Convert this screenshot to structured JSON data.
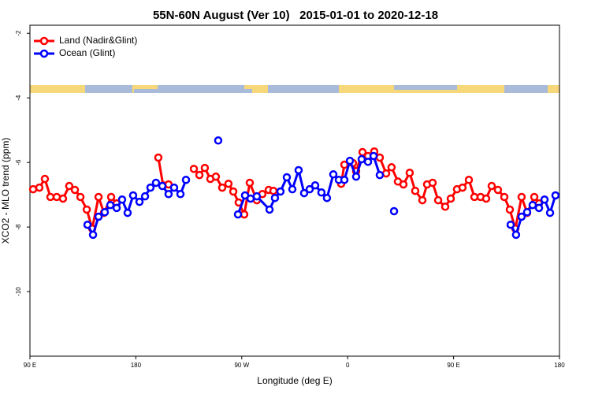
{
  "chart_data": {
    "type": "line",
    "title": "55N-60N August (Ver 10)   2015-01-01 to 2020-12-18",
    "x_label": "Longitude (deg E)",
    "y_label": "XCO2 - MLO trend (ppm)",
    "xlim": [
      90,
      540
    ],
    "ylim": [
      -12,
      -1.75
    ],
    "xticks": [
      {
        "value": 90,
        "label": "90 E"
      },
      {
        "value": 180,
        "label": "180"
      },
      {
        "value": 270,
        "label": "90 W"
      },
      {
        "value": 360,
        "label": "0"
      },
      {
        "value": 450,
        "label": "90 E"
      },
      {
        "value": 540,
        "label": "180"
      }
    ],
    "yticks": [
      -2,
      -4,
      -6,
      -8,
      -10
    ],
    "legend": "upper left",
    "series": [
      {
        "name": "Land (Nadir&Glint)",
        "color": "#ff0000",
        "x": [
          92.7,
          98.0,
          102.7,
          107.4,
          112.8,
          118.1,
          123.4,
          128.2,
          132.9,
          138.3,
          142.9,
          148.3,
          152.9,
          159.0,
          163.7,
          null,
          199.1,
          203.2,
          207.8,
          null,
          229.3,
          234.0,
          238.6,
          243.3,
          248.0,
          253.4,
          258.7,
          262.8,
          267.4,
          272.1,
          276.8,
          282.8,
          287.5,
          292.9,
          296.9,
          null,
          354.5,
          357.2,
          364.5,
          367.2,
          372.6,
          377.3,
          382.6,
          387.3,
          392.7,
          397.3,
          402.7,
          407.4,
          412.7,
          417.4,
          423.5,
          427.5,
          432.2,
          436.9,
          442.9,
          447.6,
          452.9,
          457.6,
          463.0,
          467.7,
          473.0,
          477.7,
          482.4,
          487.7,
          493.1,
          497.8,
          502.5,
          507.8,
          512.5,
          518.6,
          522.6
        ],
        "values": [
          -6.83,
          -6.78,
          -6.51,
          -7.07,
          -7.07,
          -7.12,
          -6.73,
          -6.85,
          -7.07,
          -7.46,
          -8.05,
          -7.07,
          -7.56,
          -7.07,
          -7.27,
          null,
          -5.85,
          -6.71,
          -6.68,
          null,
          -6.2,
          -6.39,
          -6.17,
          -6.51,
          -6.44,
          -6.78,
          -6.66,
          -6.9,
          -7.24,
          -7.61,
          -6.63,
          -7.17,
          -6.98,
          -6.85,
          -6.88,
          null,
          -6.66,
          -6.07,
          -6.02,
          -6.27,
          -5.68,
          -5.8,
          -5.66,
          -5.85,
          -6.34,
          -6.15,
          -6.59,
          -6.68,
          -6.32,
          -6.88,
          -7.17,
          -6.68,
          -6.63,
          -7.17,
          -7.37,
          -7.12,
          -6.83,
          -6.78,
          -6.54,
          -7.07,
          -7.07,
          -7.12,
          -6.73,
          -6.85,
          -7.07,
          -7.46,
          -8.05,
          -7.07,
          -7.56,
          -7.07,
          -7.27
        ]
      },
      {
        "name": "Ocean (Glint)",
        "color": "#0000ff",
        "x": [
          138.9,
          143.6,
          148.3,
          153.6,
          158.3,
          163.7,
          168.3,
          173.0,
          177.7,
          183.1,
          187.8,
          192.4,
          197.1,
          202.5,
          207.8,
          212.5,
          217.9,
          222.6,
          null,
          250.0,
          null,
          266.8,
          272.8,
          277.5,
          282.8,
          293.6,
          298.2,
          302.9,
          308.3,
          313.0,
          318.3,
          323.0,
          327.7,
          332.4,
          337.7,
          342.4,
          347.8,
          352.5,
          357.2,
          361.9,
          367.2,
          371.9,
          377.3,
          382.0,
          387.3,
          null,
          399.4,
          null,
          498.5,
          503.1,
          507.8,
          512.5,
          517.2,
          522.6,
          527.3,
          532.0,
          536.6
        ],
        "values": [
          -7.93,
          -8.24,
          -7.68,
          -7.54,
          -7.32,
          -7.41,
          -7.15,
          -7.56,
          -7.02,
          -7.22,
          -7.05,
          -6.78,
          -6.63,
          -6.73,
          -6.98,
          -6.78,
          -6.98,
          -6.54,
          null,
          -5.32,
          null,
          -7.61,
          -7.02,
          -7.12,
          -7.05,
          -7.46,
          -7.1,
          -6.9,
          -6.46,
          -6.83,
          -6.24,
          -6.95,
          -6.83,
          -6.71,
          -6.93,
          -7.1,
          -6.37,
          -6.54,
          -6.54,
          -5.95,
          -6.44,
          -5.9,
          -5.98,
          -5.8,
          -6.39,
          null,
          -7.51,
          null,
          -7.93,
          -8.24,
          -7.68,
          -7.54,
          -7.32,
          -7.41,
          -7.15,
          -7.56,
          -7.02
        ]
      }
    ]
  }
}
